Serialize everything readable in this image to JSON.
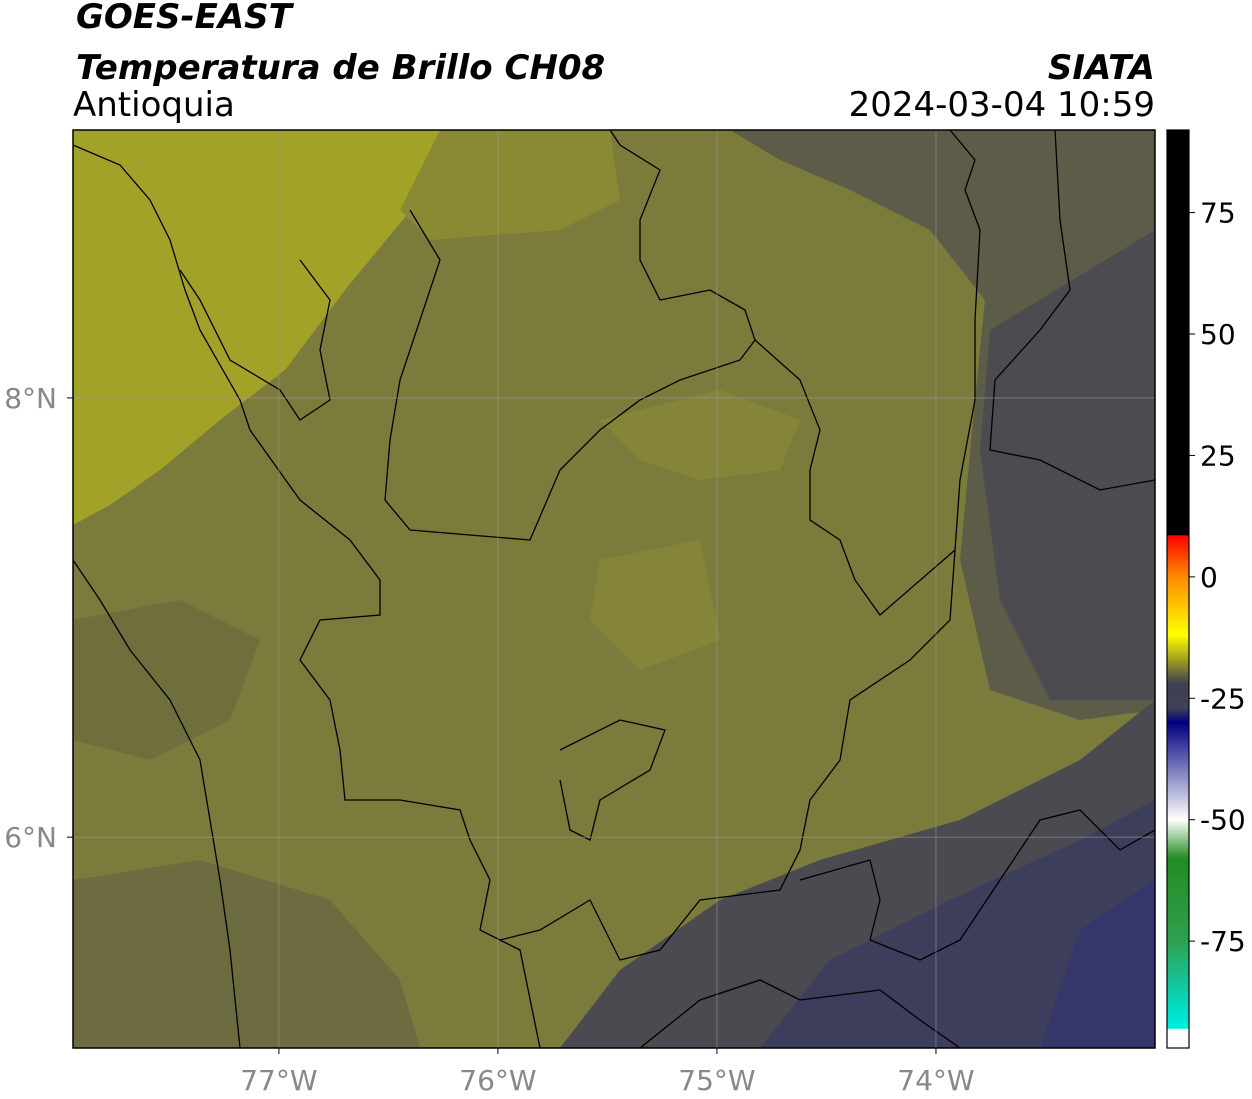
{
  "header": {
    "satellite": "GOES-EAST",
    "product": "Temperatura de Brillo CH08",
    "region": "Antioquia",
    "agency": "SIATA",
    "timestamp": "2024-03-04 10:59"
  },
  "map": {
    "xlim": [
      -77.94,
      -73.0
    ],
    "ylim": [
      5.04,
      9.22
    ],
    "xticks": [
      {
        "value": -77,
        "label": "77°W"
      },
      {
        "value": -76,
        "label": "76°W"
      },
      {
        "value": -75,
        "label": "75°W"
      },
      {
        "value": -74,
        "label": "74°W"
      }
    ],
    "yticks": [
      {
        "value": 8,
        "label": "8°N"
      },
      {
        "value": 6,
        "label": "6°N"
      }
    ],
    "grid": true,
    "grid_color": "#9a9a9a",
    "tick_label_color": "#888888"
  },
  "colorbar": {
    "lim": [
      -97,
      92
    ],
    "ticks": [
      75,
      50,
      25,
      0,
      -25,
      -50,
      -75
    ],
    "stops": [
      [
        92,
        "#000000"
      ],
      [
        8.6,
        "#000000"
      ],
      [
        8.5,
        "#ff0000"
      ],
      [
        0,
        "#ff8c00"
      ],
      [
        -12,
        "#ffff00"
      ],
      [
        -17,
        "#a0a020"
      ],
      [
        -22,
        "#404050"
      ],
      [
        -27,
        "#40405a"
      ],
      [
        -30,
        "#000080"
      ],
      [
        -40,
        "#8080c0"
      ],
      [
        -50,
        "#ffffff"
      ],
      [
        -58,
        "#228b22"
      ],
      [
        -75,
        "#30a050"
      ],
      [
        -90,
        "#00e0d0"
      ],
      [
        -93,
        "#00f0e0"
      ],
      [
        -93.1,
        "#ffffff"
      ],
      [
        -97,
        "#ffffff"
      ]
    ]
  }
}
